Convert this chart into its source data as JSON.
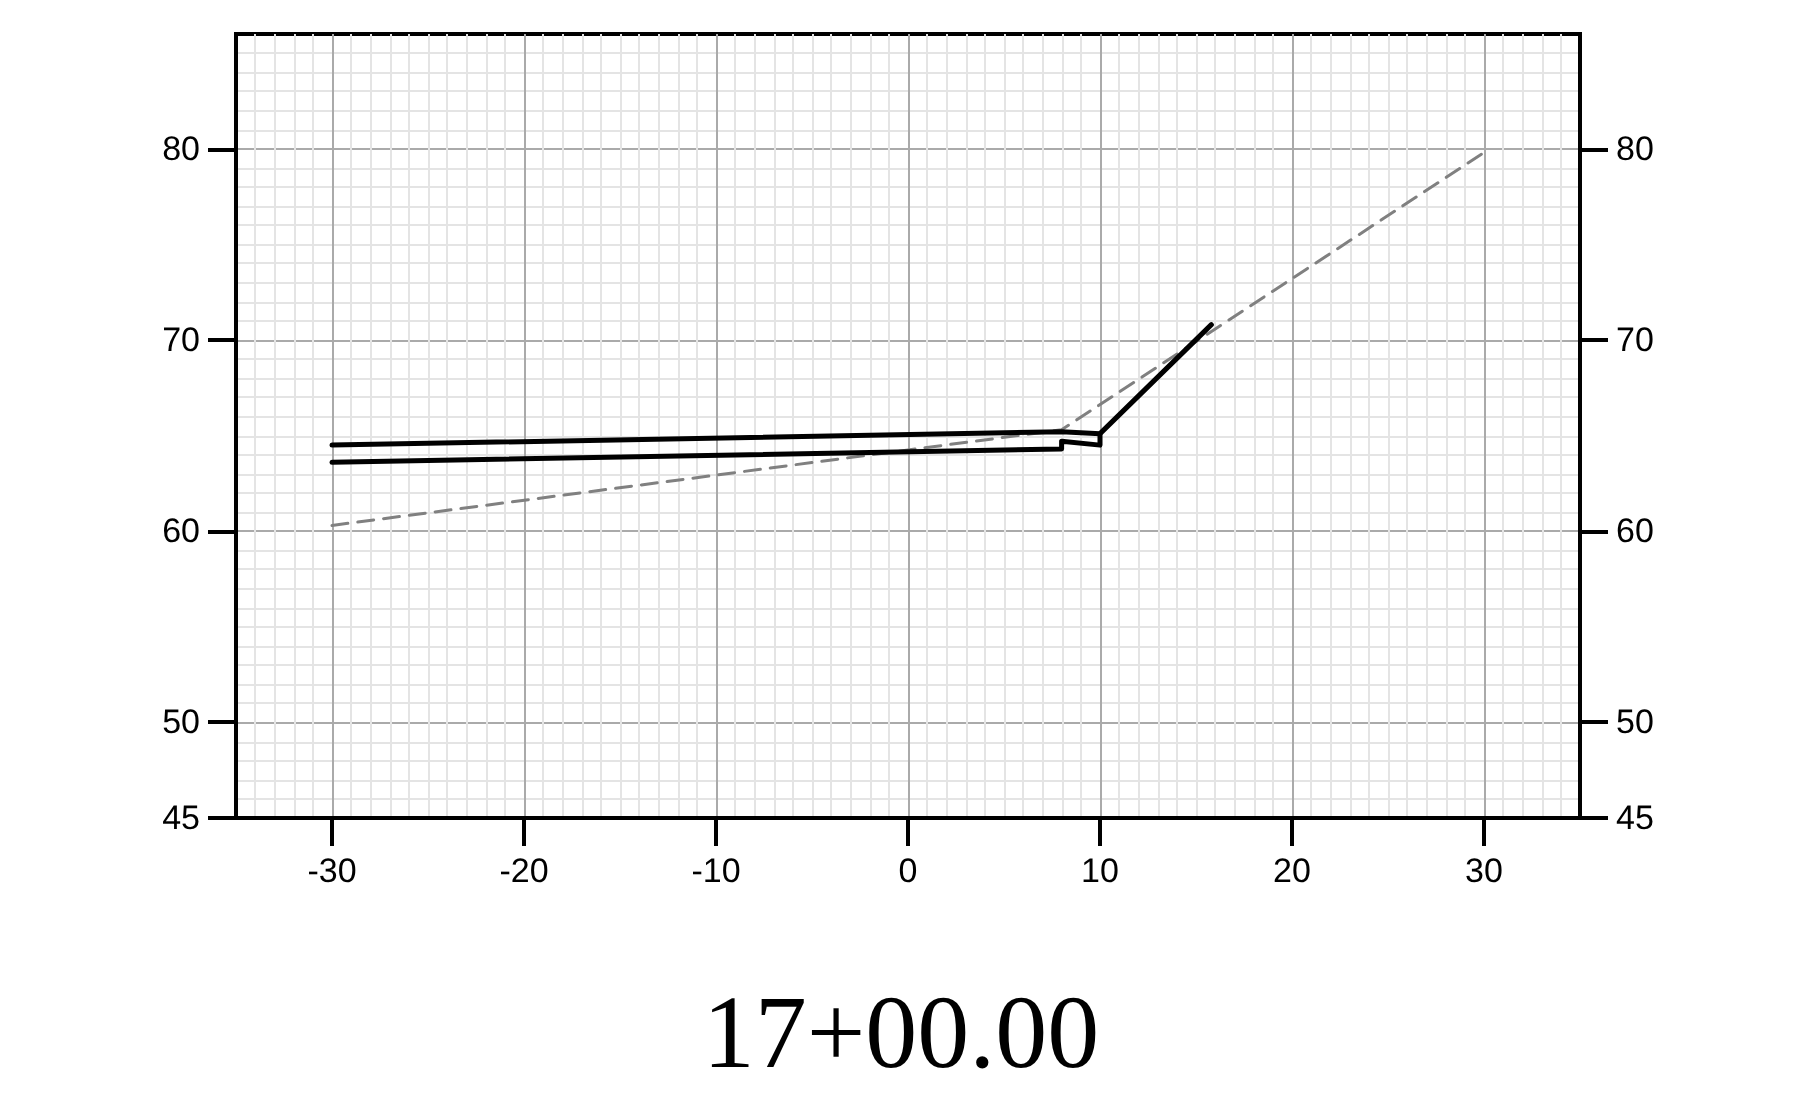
{
  "chart_data": {
    "type": "line",
    "xlabel": "17+00.00",
    "series": [
      {
        "color": "#000000",
        "x": [
          -30,
          8,
          10,
          15.8
        ],
        "values": [
          64.5,
          65.2,
          65.1,
          70.8
        ],
        "line_style": "solid"
      },
      {
        "color": "#000000",
        "x": [
          -30,
          8,
          8,
          10,
          10
        ],
        "values": [
          63.6,
          64.3,
          64.7,
          64.5,
          65.1
        ],
        "line_style": "solid"
      },
      {
        "color": "#808080",
        "x": [
          -30,
          8,
          30
        ],
        "values": [
          60.3,
          65.3,
          79.8
        ],
        "line_style": "dashed"
      }
    ],
    "xlim": [
      -35,
      35
    ],
    "xticks": [
      -30,
      -20,
      -10,
      0,
      10,
      20,
      30
    ],
    "ylim": [
      45,
      86
    ],
    "yticks": [
      45,
      50,
      60,
      70,
      80
    ],
    "y2lim": [
      45,
      86
    ],
    "y2ticks": [
      45,
      50,
      60,
      70,
      80
    ],
    "grid": true,
    "marker": "none"
  }
}
